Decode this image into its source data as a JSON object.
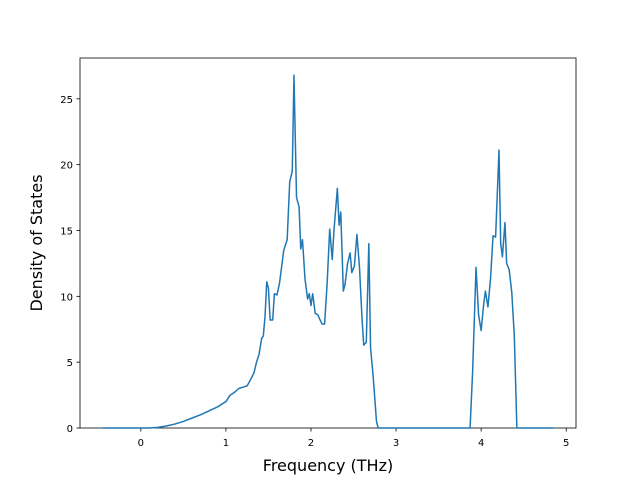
{
  "chart_data": {
    "type": "line",
    "xlabel": "Frequency (THz)",
    "ylabel": "Density of States",
    "x": [
      -0.45,
      0,
      0.1,
      0.2,
      0.3,
      0.4,
      0.5,
      0.6,
      0.7,
      0.8,
      0.9,
      1.0,
      1.05,
      1.1,
      1.15,
      1.2,
      1.25,
      1.3,
      1.33,
      1.36,
      1.39,
      1.42,
      1.44,
      1.46,
      1.48,
      1.5,
      1.52,
      1.55,
      1.57,
      1.6,
      1.63,
      1.68,
      1.72,
      1.75,
      1.78,
      1.8,
      1.83,
      1.86,
      1.88,
      1.9,
      1.93,
      1.96,
      1.98,
      2.0,
      2.02,
      2.05,
      2.08,
      2.1,
      2.13,
      2.16,
      2.19,
      2.22,
      2.25,
      2.27,
      2.31,
      2.33,
      2.35,
      2.38,
      2.4,
      2.43,
      2.46,
      2.48,
      2.51,
      2.54,
      2.57,
      2.6,
      2.62,
      2.65,
      2.68,
      2.7,
      2.73,
      2.77,
      2.79,
      3.87,
      3.9,
      3.94,
      3.97,
      4.0,
      4.03,
      4.05,
      4.08,
      4.11,
      4.14,
      4.17,
      4.21,
      4.23,
      4.25,
      4.28,
      4.3,
      4.33,
      4.36,
      4.39,
      4.42,
      4.85
    ],
    "series": [
      {
        "color": "#1f77b4",
        "values": [
          0,
          0,
          0,
          0.05,
          0.15,
          0.3,
          0.5,
          0.75,
          1.0,
          1.3,
          1.6,
          2.0,
          2.5,
          2.7,
          3.0,
          3.1,
          3.2,
          3.8,
          4.2,
          5.0,
          5.6,
          6.8,
          7.0,
          8.5,
          11.1,
          10.6,
          8.2,
          8.2,
          10.2,
          10.1,
          11.0,
          13.5,
          14.3,
          18.7,
          19.5,
          26.8,
          17.5,
          16.8,
          13.6,
          14.3,
          11.3,
          9.8,
          10.2,
          9.3,
          10.2,
          8.7,
          8.6,
          8.3,
          7.9,
          7.9,
          11.0,
          15.1,
          12.8,
          15.0,
          18.2,
          15.4,
          16.4,
          10.4,
          10.9,
          12.5,
          13.3,
          11.8,
          12.3,
          14.7,
          12.2,
          8.3,
          6.3,
          6.5,
          14.0,
          6.1,
          4.0,
          0.5,
          0,
          0,
          4.3,
          12.2,
          8.6,
          7.4,
          9.4,
          10.4,
          9.2,
          11.3,
          14.6,
          14.5,
          21.1,
          14.0,
          13.0,
          15.6,
          12.5,
          12.0,
          10.3,
          7.0,
          0,
          0
        ]
      }
    ],
    "xlim": [
      -0.715,
      5.115
    ],
    "ylim": [
      0,
      28.1
    ],
    "xticks": [
      0,
      1,
      2,
      3,
      4,
      5
    ],
    "yticks": [
      0,
      5,
      10,
      15,
      20,
      25
    ]
  }
}
